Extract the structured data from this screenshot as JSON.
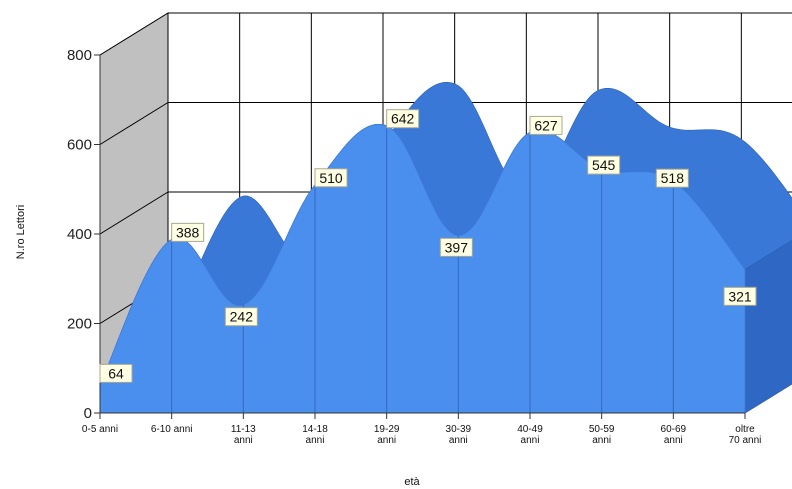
{
  "chart_data": {
    "type": "area",
    "categories": [
      "0-5 anni",
      "6-10 anni",
      "11-13\nanni",
      "14-18\nanni",
      "19-29\nanni",
      "30-39\nanni",
      "40-49\nanni",
      "50-59\nanni",
      "60-69\nanni",
      "oltre\n70 anni"
    ],
    "series": [
      {
        "values": [
          64,
          388,
          242,
          510,
          642,
          397,
          627,
          545,
          518,
          321
        ]
      }
    ],
    "xlabel": "età",
    "ylabel": "N.ro Lettori",
    "ylim": [
      0,
      800
    ],
    "yticks": [
      0,
      200,
      400,
      600,
      800
    ],
    "grid": true,
    "three_d": true,
    "data_labels": true,
    "colors": {
      "area_front": "#4a8fee",
      "area_top": "#3a78d8",
      "area_side": "#2f67c4",
      "back_wall": "#ffffff",
      "side_wall": "#c0c0c0",
      "floor": "#c0c0c0",
      "grid": "#000000",
      "label_bg": "#ffffe4"
    }
  }
}
